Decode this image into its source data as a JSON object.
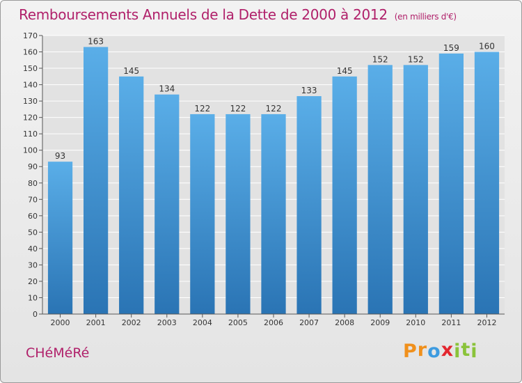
{
  "chart_data": {
    "type": "bar",
    "title": "Remboursements Annuels de la Dette de 2000 à 2012",
    "unit_note": "(en milliers d'€)",
    "categories": [
      "2000",
      "2001",
      "2002",
      "2003",
      "2004",
      "2005",
      "2006",
      "2007",
      "2008",
      "2009",
      "2010",
      "2011",
      "2012"
    ],
    "values": [
      93,
      163,
      145,
      134,
      122,
      122,
      122,
      133,
      145,
      152,
      152,
      159,
      160
    ],
    "ylim": [
      0,
      170
    ],
    "yticks": [
      0,
      10,
      20,
      30,
      40,
      50,
      60,
      70,
      80,
      90,
      100,
      110,
      120,
      130,
      140,
      150,
      160,
      170
    ],
    "grid": true,
    "colors": {
      "bar_top": "#5aaee8",
      "bar_bottom": "#2a74b4",
      "accent": "#b0206a",
      "grid": "#ffffff"
    }
  },
  "footer": {
    "commune": "CHéMéRé",
    "logo": {
      "letters": [
        "P",
        "r",
        "o",
        "x",
        "i",
        "t",
        "i"
      ],
      "colors": [
        "#f0901c",
        "#f0901c",
        "#3d9be0",
        "#e3262e",
        "#8ac33a",
        "#8ac33a",
        "#8ac33a"
      ]
    }
  }
}
